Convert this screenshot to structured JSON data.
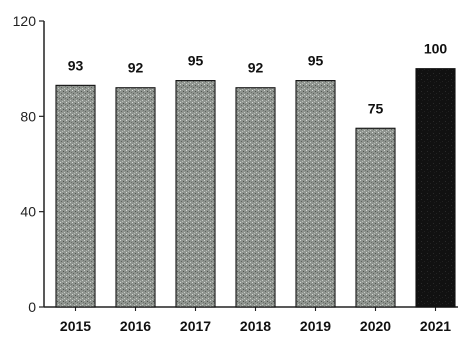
{
  "chart_data": {
    "type": "bar",
    "title": "",
    "xlabel": "",
    "ylabel": "",
    "categories": [
      "2015",
      "2016",
      "2017",
      "2018",
      "2019",
      "2020",
      "2021"
    ],
    "values": [
      93,
      92,
      95,
      92,
      95,
      75,
      100
    ],
    "data_labels": [
      "93",
      "92",
      "95",
      "92",
      "95",
      "75",
      "100"
    ],
    "ylim": [
      0,
      120
    ],
    "yticks": [
      0,
      40,
      80,
      120
    ],
    "ytick_labels": [
      "0",
      "40",
      "80",
      "120"
    ],
    "grid": false,
    "legend": "none",
    "colors": {
      "bar": "#8f948f",
      "highlight_bar": "#111111",
      "bar_outline": "#111111",
      "axis": "#222222"
    },
    "highlight_category": "2021"
  }
}
